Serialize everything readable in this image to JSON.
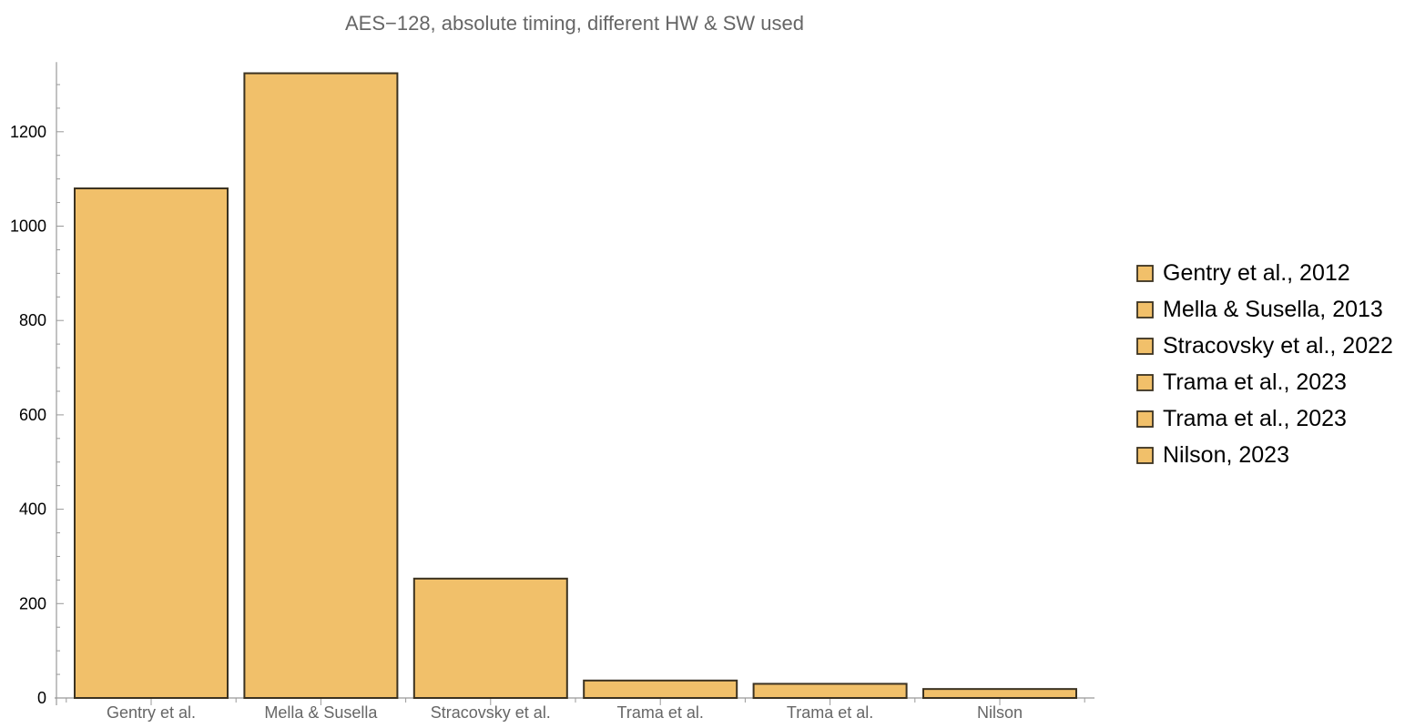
{
  "chart_data": {
    "type": "bar",
    "title": "AES−128, absolute timing, different HW & SW used",
    "xlabel": "",
    "ylabel": "",
    "categories": [
      "Gentry et al.",
      "Mella & Susella",
      "Stracovsky et al.",
      "Trama et al.",
      "Trama et al.",
      "Nilson"
    ],
    "values": [
      1080,
      1324,
      253,
      37,
      30,
      19
    ],
    "ylim": [
      0,
      1390
    ],
    "yticks": [
      "0",
      "200",
      "400",
      "600",
      "800",
      "1000",
      "1200"
    ],
    "legend_position": "right",
    "legend": [
      "Gentry et al., 2012",
      "Mella & Susella, 2013",
      "Stracovsky et al., 2022",
      "Trama et al., 2023",
      "Trama et al., 2023",
      "Nilson, 2023"
    ],
    "grid": false,
    "bar_color": "#f1c06a",
    "edge_color": "#3b3221"
  }
}
